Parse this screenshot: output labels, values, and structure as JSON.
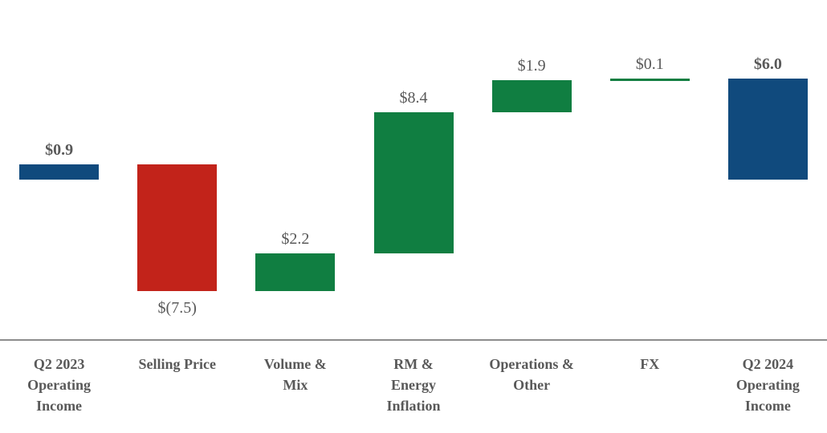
{
  "chart_data": {
    "type": "bar",
    "variant": "waterfall",
    "title": "",
    "xlabel": "",
    "ylabel": "",
    "legend": "none",
    "grid": false,
    "y_axis_visible": false,
    "baseline_value": 0,
    "ylim": [
      -7.5,
      7.0
    ],
    "categories": [
      "Q2 2023 Operating Income",
      "Selling Price",
      "Volume & Mix",
      "RM & Energy Inflation",
      "Operations & Other",
      "FX",
      "Q2 2024 Operating Income"
    ],
    "values": [
      0.9,
      -7.5,
      2.2,
      8.4,
      1.9,
      0.1,
      6.0
    ],
    "bars": [
      {
        "id": "q2-2023-operating-income",
        "label": "Q2 2023 Operating Income",
        "label_lines": [
          "Q2 2023",
          "Operating",
          "Income"
        ],
        "value": 0.9,
        "value_label": "$0.9",
        "start": 0,
        "end": 0.9,
        "role": "total",
        "color": "#104A7D",
        "value_label_position": "above",
        "value_label_bold": true
      },
      {
        "id": "selling-price",
        "label": "Selling Price",
        "label_lines": [
          "Selling Price"
        ],
        "value": -7.5,
        "value_label": "$(7.5)",
        "start": 0.9,
        "end": -6.6,
        "role": "decrease",
        "color": "#C2231A",
        "value_label_position": "below",
        "value_label_bold": false
      },
      {
        "id": "volume-and-mix",
        "label": "Volume & Mix",
        "label_lines": [
          "Volume &",
          "Mix"
        ],
        "value": 2.2,
        "value_label": "$2.2",
        "start": -6.6,
        "end": -4.4,
        "role": "increase",
        "color": "#107E41",
        "value_label_position": "above",
        "value_label_bold": false
      },
      {
        "id": "rm-and-energy-inflation",
        "label": "RM & Energy Inflation",
        "label_lines": [
          "RM &",
          "Energy",
          "Inflation"
        ],
        "value": 8.4,
        "value_label": "$8.4",
        "start": -4.4,
        "end": 4.0,
        "role": "increase",
        "color": "#107E41",
        "value_label_position": "above",
        "value_label_bold": false
      },
      {
        "id": "operations-and-other",
        "label": "Operations & Other",
        "label_lines": [
          "Operations &",
          "Other"
        ],
        "value": 1.9,
        "value_label": "$1.9",
        "start": 4.0,
        "end": 5.9,
        "role": "increase",
        "color": "#107E41",
        "value_label_position": "above",
        "value_label_bold": false
      },
      {
        "id": "fx",
        "label": "FX",
        "label_lines": [
          "FX"
        ],
        "value": 0.1,
        "value_label": "$0.1",
        "start": 5.9,
        "end": 6.0,
        "role": "increase",
        "color": "#107E41",
        "value_label_position": "above",
        "value_label_bold": false
      },
      {
        "id": "q2-2024-operating-income",
        "label": "Q2 2024 Operating Income",
        "label_lines": [
          "Q2 2024",
          "Operating",
          "Income"
        ],
        "value": 6.0,
        "value_label": "$6.0",
        "start": 0,
        "end": 6.0,
        "role": "total",
        "color": "#104A7D",
        "value_label_position": "above",
        "value_label_bold": true
      }
    ],
    "colors": {
      "total": "#104A7D",
      "increase": "#107E41",
      "decrease": "#C2231A",
      "label_text": "#595959",
      "axis_line": "#8C8C8C",
      "background": "#FFFFFF"
    }
  }
}
